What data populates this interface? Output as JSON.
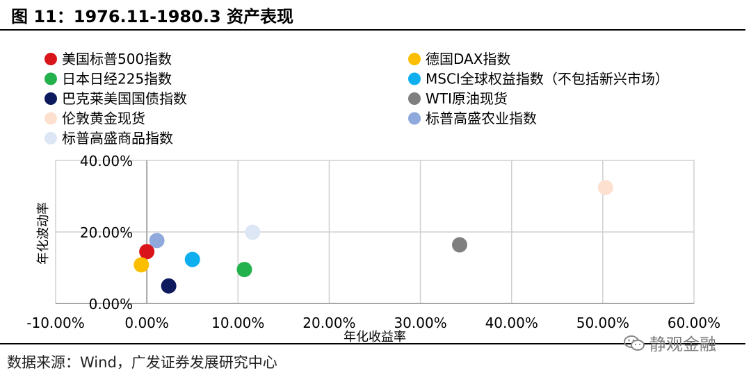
{
  "figure": {
    "title": "图 11：1976.11-1980.3 资产表现",
    "source": "数据来源：Wind，广发证券发展研究中心",
    "watermark": "静观金融",
    "watermark_icon": "wechat-icon"
  },
  "chart_data": {
    "type": "scatter",
    "xlabel": "年化收益率",
    "ylabel": "年化波动率",
    "xlim": [
      -0.1,
      0.6
    ],
    "ylim": [
      0.0,
      0.4
    ],
    "x_ticks": [
      -0.1,
      0.0,
      0.1,
      0.2,
      0.3,
      0.4,
      0.5,
      0.6
    ],
    "x_tick_labels": [
      "-10.00%",
      "0.00%",
      "10.00%",
      "20.00%",
      "30.00%",
      "40.00%",
      "50.00%",
      "60.00%"
    ],
    "y_ticks": [
      0.0,
      0.2,
      0.4
    ],
    "y_tick_labels": [
      "0.00%",
      "20.00%",
      "40.00%"
    ],
    "grid": true,
    "legend_position": "top",
    "series": [
      {
        "name": "美国标普500指数",
        "color": "#d9151b",
        "x": 0.0,
        "y": 0.145
      },
      {
        "name": "德国DAX指数",
        "color": "#fbbf00",
        "x": -0.006,
        "y": 0.108
      },
      {
        "name": "日本日经225指数",
        "color": "#22b14c",
        "x": 0.107,
        "y": 0.095
      },
      {
        "name": "MSCI全球权益指数（不包括新兴市场）",
        "color": "#0eaeef",
        "x": 0.05,
        "y": 0.123
      },
      {
        "name": "巴克莱美国国债指数",
        "color": "#0d1b5e",
        "x": 0.024,
        "y": 0.049
      },
      {
        "name": "WTI原油现货",
        "color": "#7f7f7f",
        "x": 0.343,
        "y": 0.164
      },
      {
        "name": "伦敦黄金现货",
        "color": "#fde0d0",
        "x": 0.503,
        "y": 0.324
      },
      {
        "name": "标普高盛农业指数",
        "color": "#8fa9dc",
        "x": 0.011,
        "y": 0.176
      },
      {
        "name": "标普高盛商品指数",
        "color": "#dce6f4",
        "x": 0.116,
        "y": 0.199
      }
    ]
  }
}
